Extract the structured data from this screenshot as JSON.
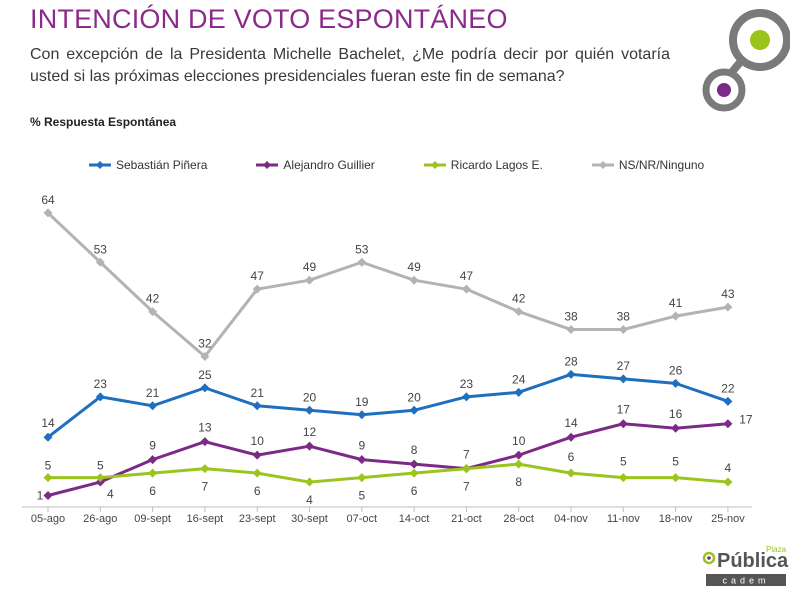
{
  "header": {
    "title": "INTENCIÓN DE VOTO ESPONTÁNEO",
    "question": "Con excepción de la Presidenta Michelle Bachelet, ¿Me podría decir por quién votaría usted si las próximas elecciones presidenciales fueran este fin de semana?",
    "subtitle": "% Respuesta Espontánea"
  },
  "logo": {
    "brand": "Pública",
    "tag": "Plaza",
    "sub": "cadem"
  },
  "colors": {
    "title": "#8b2a8b",
    "pinera": "#1f6fbf",
    "guillier": "#7b2a86",
    "lagos": "#9bc41d",
    "ns": "#b3b3b3"
  },
  "chart_data": {
    "type": "line",
    "categories": [
      "05-ago",
      "26-ago",
      "09-sept",
      "16-sept",
      "23-sept",
      "30-sept",
      "07-oct",
      "14-oct",
      "21-oct",
      "28-oct",
      "04-nov",
      "11-nov",
      "18-nov",
      "25-nov"
    ],
    "ylim": [
      0,
      70
    ],
    "legend_position": "top",
    "grid": false,
    "series": [
      {
        "name": "Sebastián Piñera",
        "color": "#1f6fbf",
        "values": [
          14,
          23,
          21,
          25,
          21,
          20,
          19,
          20,
          23,
          24,
          28,
          27,
          26,
          22
        ]
      },
      {
        "name": "Alejandro  Guillier",
        "color": "#7b2a86",
        "values": [
          1,
          4,
          9,
          13,
          10,
          12,
          9,
          8,
          7,
          10,
          14,
          17,
          16,
          17
        ]
      },
      {
        "name": "Ricardo Lagos E.",
        "color": "#9bc41d",
        "values": [
          5,
          5,
          6,
          7,
          6,
          4,
          5,
          6,
          7,
          8,
          6,
          5,
          5,
          4
        ]
      },
      {
        "name": "NS/NR/Ninguno",
        "color": "#b3b3b3",
        "values": [
          64,
          53,
          42,
          32,
          47,
          49,
          53,
          49,
          47,
          42,
          38,
          38,
          41,
          43
        ]
      }
    ]
  }
}
